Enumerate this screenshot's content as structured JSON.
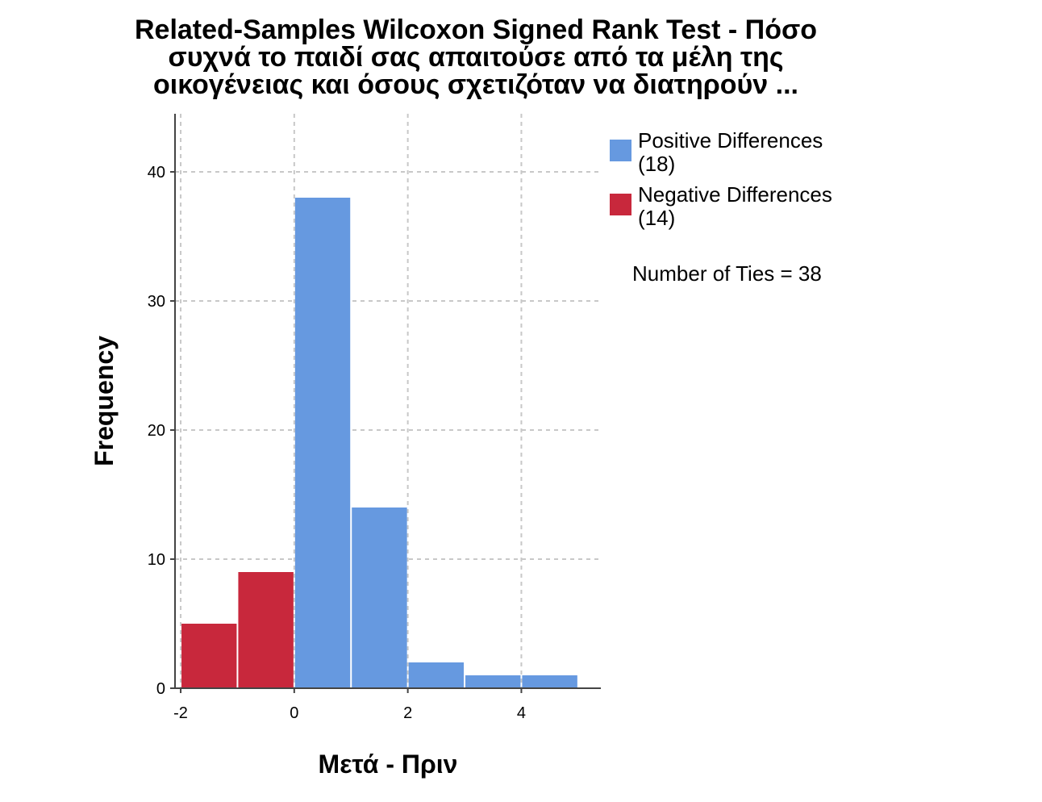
{
  "chart_data": {
    "type": "bar",
    "title_lines": [
      "Related-Samples Wilcoxon Signed Rank Test - Πόσο",
      "συχνά το παιδί σας απαιτούσε από τα μέλη της",
      "οικογένειας και όσους σχετιζόταν να διατηρούν ..."
    ],
    "xlabel": "Μετά - Πριν",
    "ylabel": "Frequency",
    "xlim": [
      -2.1,
      5.4
    ],
    "ylim": [
      0,
      44.5
    ],
    "x_ticks": [
      -2,
      0,
      2,
      4
    ],
    "y_ticks": [
      0,
      10,
      20,
      30,
      40
    ],
    "bin_width": 1,
    "grid": true,
    "legend_position": "top-right",
    "bars": [
      {
        "x0": -2,
        "x1": -1,
        "value": 5,
        "group": "negative"
      },
      {
        "x0": -1,
        "x1": 0,
        "value": 9,
        "group": "negative"
      },
      {
        "x0": 0,
        "x1": 1,
        "value": 38,
        "group": "positive"
      },
      {
        "x0": 1,
        "x1": 2,
        "value": 14,
        "group": "positive"
      },
      {
        "x0": 2,
        "x1": 3,
        "value": 2,
        "group": "positive"
      },
      {
        "x0": 3,
        "x1": 4,
        "value": 1,
        "group": "positive"
      },
      {
        "x0": 4,
        "x1": 5,
        "value": 1,
        "group": "positive"
      }
    ],
    "series": [
      {
        "key": "positive",
        "name_line1": "Positive Differences",
        "name_line2": "(18)",
        "color": "#6699e0"
      },
      {
        "key": "negative",
        "name_line1": "Negative Differences",
        "name_line2": "(14)",
        "color": "#c8283c"
      }
    ],
    "annotation": "Number of Ties = 38"
  }
}
